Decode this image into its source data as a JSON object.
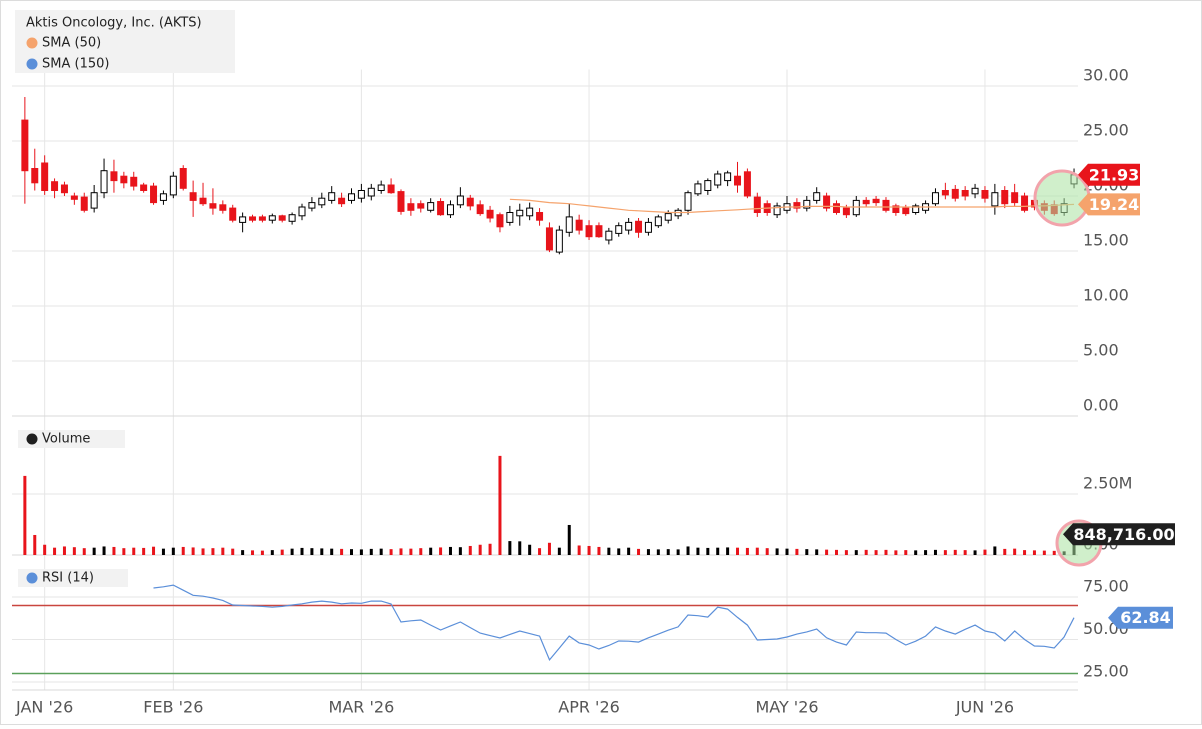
{
  "chart_data": {
    "type": "candlestick",
    "title": "Aktis Oncology, Inc. (AKTS)",
    "xlim": [
      -1.3,
      106.4
    ],
    "xticks": [
      {
        "value": 2,
        "label": "JAN '26"
      },
      {
        "value": 15,
        "label": "FEB '26"
      },
      {
        "value": 34,
        "label": "MAR '26"
      },
      {
        "value": 57,
        "label": "APR '26"
      },
      {
        "value": 77,
        "label": "MAY '26"
      },
      {
        "value": 97,
        "label": "JUN '26"
      }
    ],
    "ylim": [
      0,
      31.5
    ],
    "yticks": [
      {
        "value": 0,
        "label": "0.00"
      },
      {
        "value": 5,
        "label": "5.00"
      },
      {
        "value": 10,
        "label": "10.00"
      },
      {
        "value": 15,
        "label": "15.00"
      },
      {
        "value": 20,
        "label": "20.00"
      },
      {
        "value": 25,
        "label": "25.00"
      },
      {
        "value": 30,
        "label": "30.00"
      }
    ],
    "grid": true,
    "up_color": "#000000",
    "down_color": "#e8141b",
    "last_color": "#e8141b",
    "ohlc": [
      [
        26.9,
        29.0,
        19.3,
        22.3
      ],
      [
        22.5,
        24.3,
        20.5,
        21.2
      ],
      [
        23.0,
        23.7,
        20.1,
        20.5
      ],
      [
        21.3,
        21.6,
        19.8,
        20.5
      ],
      [
        21.0,
        21.3,
        20.0,
        20.3
      ],
      [
        20.0,
        20.3,
        19.2,
        19.7
      ],
      [
        19.9,
        20.3,
        18.5,
        18.7
      ],
      [
        18.9,
        21.0,
        18.5,
        20.3
      ],
      [
        20.3,
        23.4,
        19.8,
        22.3
      ],
      [
        22.2,
        23.3,
        20.3,
        21.4
      ],
      [
        21.8,
        22.2,
        20.7,
        21.2
      ],
      [
        21.7,
        22.2,
        20.5,
        20.9
      ],
      [
        21.0,
        21.2,
        20.3,
        20.5
      ],
      [
        20.9,
        21.2,
        19.2,
        19.4
      ],
      [
        19.6,
        20.5,
        19.2,
        20.2
      ],
      [
        20.1,
        22.2,
        19.8,
        21.8
      ],
      [
        22.5,
        22.8,
        20.5,
        20.7
      ],
      [
        20.3,
        21.4,
        18.1,
        19.6
      ],
      [
        19.8,
        21.2,
        19.1,
        19.3
      ],
      [
        19.3,
        20.7,
        18.3,
        18.9
      ],
      [
        19.2,
        19.6,
        18.4,
        18.7
      ],
      [
        18.9,
        19.2,
        17.6,
        17.8
      ],
      [
        17.6,
        18.5,
        16.7,
        18.1
      ],
      [
        18.1,
        18.3,
        17.6,
        17.8
      ],
      [
        18.1,
        18.3,
        17.6,
        17.8
      ],
      [
        17.8,
        18.4,
        17.5,
        18.2
      ],
      [
        18.2,
        18.3,
        17.6,
        17.8
      ],
      [
        17.7,
        18.5,
        17.4,
        18.3
      ],
      [
        18.2,
        19.3,
        17.8,
        19.0
      ],
      [
        18.9,
        19.9,
        18.6,
        19.4
      ],
      [
        19.2,
        20.3,
        18.9,
        19.8
      ],
      [
        19.6,
        20.9,
        19.3,
        20.3
      ],
      [
        19.8,
        20.3,
        19.0,
        19.3
      ],
      [
        19.6,
        20.7,
        19.3,
        20.2
      ],
      [
        19.8,
        21.1,
        19.4,
        20.5
      ],
      [
        20.0,
        21.1,
        19.6,
        20.7
      ],
      [
        20.5,
        21.4,
        20.2,
        21.0
      ],
      [
        21.0,
        21.6,
        20.2,
        20.3
      ],
      [
        20.4,
        20.6,
        18.3,
        18.6
      ],
      [
        19.3,
        19.8,
        18.2,
        18.7
      ],
      [
        19.3,
        19.6,
        18.5,
        18.9
      ],
      [
        18.7,
        19.8,
        18.5,
        19.4
      ],
      [
        19.5,
        19.8,
        18.2,
        18.3
      ],
      [
        18.3,
        19.6,
        18.0,
        19.2
      ],
      [
        19.2,
        20.8,
        18.9,
        20.0
      ],
      [
        19.8,
        20.1,
        18.7,
        19.1
      ],
      [
        19.2,
        19.6,
        18.2,
        18.4
      ],
      [
        18.7,
        19.1,
        17.6,
        18.0
      ],
      [
        18.3,
        18.5,
        16.7,
        17.2
      ],
      [
        17.6,
        19.1,
        17.3,
        18.5
      ],
      [
        18.2,
        19.3,
        17.3,
        18.7
      ],
      [
        18.2,
        19.4,
        17.8,
        18.9
      ],
      [
        18.5,
        18.9,
        17.3,
        17.8
      ],
      [
        17.1,
        17.6,
        14.9,
        15.1
      ],
      [
        14.9,
        17.3,
        14.7,
        16.9
      ],
      [
        16.7,
        19.3,
        16.3,
        18.1
      ],
      [
        17.8,
        18.3,
        16.5,
        16.9
      ],
      [
        17.3,
        17.8,
        16.0,
        16.3
      ],
      [
        17.3,
        17.6,
        16.2,
        16.3
      ],
      [
        16.0,
        17.1,
        15.6,
        16.8
      ],
      [
        16.6,
        17.6,
        16.3,
        17.3
      ],
      [
        16.9,
        18.0,
        16.5,
        17.6
      ],
      [
        17.7,
        18.0,
        16.2,
        16.7
      ],
      [
        16.7,
        18.0,
        16.4,
        17.6
      ],
      [
        17.3,
        18.3,
        17.1,
        18.1
      ],
      [
        17.8,
        18.7,
        17.5,
        18.4
      ],
      [
        18.2,
        18.9,
        17.9,
        18.7
      ],
      [
        18.7,
        20.5,
        18.3,
        20.3
      ],
      [
        20.2,
        21.4,
        20.0,
        21.1
      ],
      [
        20.5,
        21.6,
        20.1,
        21.4
      ],
      [
        21.0,
        22.3,
        20.7,
        22.0
      ],
      [
        21.4,
        22.3,
        20.9,
        22.1
      ],
      [
        21.8,
        23.1,
        20.3,
        21.0
      ],
      [
        22.2,
        22.5,
        19.8,
        20.0
      ],
      [
        19.9,
        20.3,
        18.1,
        18.5
      ],
      [
        19.3,
        19.6,
        18.2,
        18.5
      ],
      [
        18.3,
        19.4,
        18.0,
        19.1
      ],
      [
        18.7,
        20.0,
        18.4,
        19.3
      ],
      [
        19.4,
        19.8,
        18.5,
        18.9
      ],
      [
        18.9,
        20.0,
        18.6,
        19.6
      ],
      [
        19.6,
        20.8,
        19.3,
        20.3
      ],
      [
        20.0,
        20.3,
        18.6,
        18.9
      ],
      [
        19.3,
        19.6,
        18.3,
        18.5
      ],
      [
        18.9,
        19.2,
        18.0,
        18.3
      ],
      [
        18.3,
        20.0,
        18.1,
        19.6
      ],
      [
        19.6,
        19.9,
        19.0,
        19.3
      ],
      [
        19.7,
        20.0,
        19.1,
        19.4
      ],
      [
        19.6,
        19.9,
        18.5,
        18.7
      ],
      [
        19.1,
        19.3,
        18.2,
        18.5
      ],
      [
        18.9,
        19.2,
        18.2,
        18.4
      ],
      [
        18.5,
        19.3,
        18.3,
        19.1
      ],
      [
        18.7,
        19.6,
        18.4,
        19.3
      ],
      [
        19.3,
        20.7,
        19.1,
        20.3
      ],
      [
        20.5,
        21.2,
        19.7,
        20.1
      ],
      [
        20.6,
        21.0,
        19.5,
        19.8
      ],
      [
        20.5,
        20.9,
        19.6,
        20.0
      ],
      [
        20.2,
        21.1,
        19.8,
        20.7
      ],
      [
        20.5,
        20.9,
        19.4,
        19.8
      ],
      [
        19.1,
        21.1,
        18.3,
        20.3
      ],
      [
        20.5,
        20.9,
        18.9,
        19.3
      ],
      [
        20.3,
        21.1,
        19.1,
        19.4
      ],
      [
        20.0,
        20.3,
        18.5,
        18.7
      ],
      [
        19.6,
        20.0,
        18.7,
        19.0
      ],
      [
        19.3,
        19.6,
        18.3,
        18.7
      ],
      [
        19.2,
        19.6,
        18.2,
        18.4
      ],
      [
        18.5,
        19.8,
        18.2,
        19.3
      ],
      [
        21.1,
        22.5,
        20.7,
        21.93
      ]
    ],
    "overlays": [
      {
        "name": "SMA (50)",
        "color": "#f5a36c",
        "values": [
          null,
          null,
          null,
          null,
          null,
          null,
          null,
          null,
          null,
          null,
          null,
          null,
          null,
          null,
          null,
          null,
          null,
          null,
          null,
          null,
          null,
          null,
          null,
          null,
          null,
          null,
          null,
          null,
          null,
          null,
          null,
          null,
          null,
          null,
          null,
          null,
          null,
          null,
          null,
          null,
          null,
          null,
          null,
          null,
          null,
          null,
          null,
          null,
          null,
          19.7,
          19.65,
          19.6,
          19.5,
          19.4,
          19.35,
          19.3,
          19.2,
          19.1,
          19.0,
          18.9,
          18.8,
          18.7,
          18.65,
          18.6,
          18.55,
          18.5,
          18.5,
          18.5,
          18.55,
          18.6,
          18.65,
          18.7,
          18.75,
          18.8,
          18.85,
          18.9,
          18.95,
          19.0,
          19.0,
          19.05,
          19.05,
          19.05,
          19.05,
          19.0,
          19.0,
          19.0,
          19.0,
          19.0,
          19.0,
          19.0,
          19.0,
          19.0,
          19.0,
          19.0,
          19.0,
          19.0,
          19.0,
          19.0,
          19.0,
          19.05,
          19.05,
          19.05,
          19.1,
          19.1,
          19.15,
          19.2,
          19.24
        ]
      },
      {
        "name": "SMA (150)",
        "color": "#5b8fd9"
      }
    ],
    "volume": {
      "name": "Volume",
      "ylim": [
        0,
        5120000
      ],
      "yticks": [
        {
          "value": 0,
          "label": "0.00"
        },
        {
          "value": 2500000,
          "label": "2.50M"
        }
      ],
      "last_label": "848,716.00",
      "last_color": "#1f1f1f",
      "values": [
        3240000,
        820000,
        420000,
        300000,
        350000,
        320000,
        280000,
        300000,
        350000,
        330000,
        280000,
        300000,
        290000,
        340000,
        260000,
        300000,
        330000,
        310000,
        270000,
        280000,
        300000,
        260000,
        200000,
        190000,
        180000,
        200000,
        220000,
        260000,
        290000,
        280000,
        270000,
        260000,
        250000,
        240000,
        230000,
        250000,
        260000,
        240000,
        270000,
        260000,
        280000,
        300000,
        310000,
        330000,
        320000,
        370000,
        420000,
        460000,
        4060000,
        570000,
        560000,
        420000,
        280000,
        500000,
        300000,
        1230000,
        390000,
        370000,
        330000,
        300000,
        270000,
        300000,
        250000,
        240000,
        230000,
        240000,
        230000,
        350000,
        300000,
        290000,
        300000,
        310000,
        300000,
        290000,
        300000,
        280000,
        270000,
        260000,
        250000,
        240000,
        230000,
        220000,
        210000,
        200000,
        200000,
        210000,
        200000,
        210000,
        190000,
        200000,
        190000,
        200000,
        210000,
        200000,
        210000,
        200000,
        190000,
        220000,
        350000,
        250000,
        260000,
        200000,
        190000,
        180000,
        170000,
        150000,
        848716
      ]
    },
    "rsi": {
      "name": "RSI (14)",
      "color": "#5b8fd9",
      "ylim": [
        20.3,
        95.6
      ],
      "yticks": [
        {
          "value": 25,
          "label": "25.00"
        },
        {
          "value": 50,
          "label": "50.00"
        },
        {
          "value": 75,
          "label": "75.00"
        }
      ],
      "overbought": 70,
      "overbought_color": "#c9453f",
      "oversold": 30,
      "oversold_color": "#5aa05a",
      "values": [
        null,
        null,
        null,
        null,
        null,
        null,
        null,
        null,
        null,
        null,
        null,
        null,
        null,
        80.3,
        81,
        82,
        79,
        76,
        75.5,
        74.4,
        73,
        70.3,
        70,
        69.7,
        69.5,
        69,
        69.5,
        70.3,
        71,
        72,
        72.6,
        72,
        71,
        71.5,
        71.3,
        72.6,
        72.6,
        70.9,
        60.3,
        61,
        61.5,
        58.5,
        55.6,
        58,
        60.3,
        57,
        53.8,
        52.3,
        50.9,
        53,
        55,
        53.5,
        52,
        38,
        45,
        52,
        48,
        46.8,
        44.4,
        46.5,
        49.1,
        49,
        48.5,
        51,
        53.2,
        55.5,
        57.4,
        64.4,
        64,
        63.2,
        69,
        67.9,
        63,
        58.5,
        49.7,
        50,
        50.3,
        51.5,
        53.2,
        54.5,
        56.2,
        51,
        48.5,
        46.8,
        54.4,
        54,
        54,
        53.8,
        50,
        46.8,
        49,
        52,
        57.4,
        55,
        53.2,
        56,
        58.5,
        55,
        53.8,
        49.1,
        55,
        50,
        46.2,
        46,
        45,
        51.5,
        62.84
      ]
    }
  }
}
